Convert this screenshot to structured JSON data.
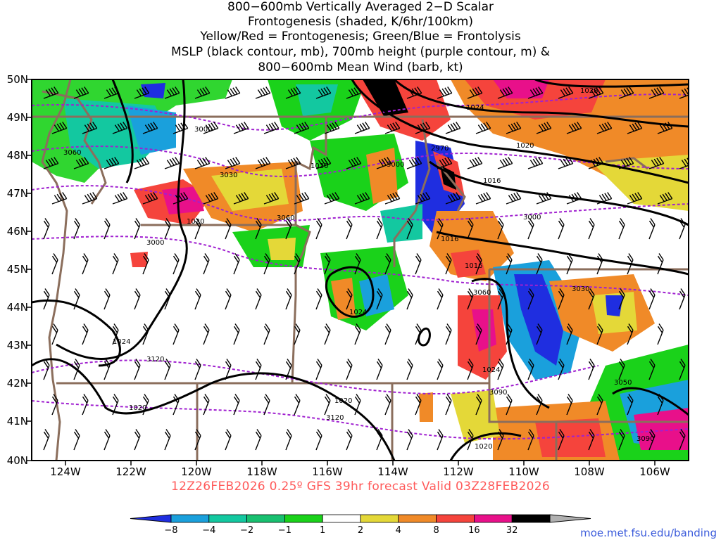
{
  "title_lines": [
    "800−600mb Vertically Averaged 2−D Scalar",
    "Frontogenesis (shaded, K/6hr/100km)",
    "Yellow/Red = Frontogenesis;  Green/Blue = Frontolysis",
    "MSLP (black contour, mb), 700mb height (purple contour, m) &",
    "800−600mb Mean Wind (barb, kt)"
  ],
  "lat_labels": [
    "50N",
    "49N",
    "48N",
    "47N",
    "46N",
    "45N",
    "44N",
    "43N",
    "42N",
    "41N",
    "40N"
  ],
  "lon_labels": [
    "124W",
    "122W",
    "120W",
    "118W",
    "116W",
    "114W",
    "112W",
    "110W",
    "108W",
    "106W"
  ],
  "footer": "12Z26FEB2026 0.25º GFS 39hr forecast Valid 03Z28FEB2026",
  "credit": "moe.met.fsu.edu/banding",
  "colorbar": {
    "labels": [
      "−8",
      "−4",
      "−2",
      "−1",
      "1",
      "2",
      "4",
      "8",
      "16",
      "32"
    ],
    "colors": [
      "#1f2ee0",
      "#1aa0dc",
      "#13c8a0",
      "#18c070",
      "#1ad21a",
      "#ffffff",
      "#e4d838",
      "#f08a28",
      "#f5443c",
      "#e8108a",
      "#000000",
      "#b0b0b0"
    ]
  },
  "contours": {
    "mslp": [
      "1028",
      "1024",
      "1020",
      "1016",
      "1016",
      "1020",
      "1020",
      "1024",
      "1024",
      "1024",
      "1020",
      "1020",
      "1020",
      "1016"
    ],
    "height": [
      "3000",
      "3060",
      "3030",
      "3060",
      "3000",
      "2970",
      "3000",
      "3000",
      "3030",
      "3060",
      "3090",
      "3090",
      "3120",
      "3120",
      "3050"
    ]
  },
  "colors": {
    "mslp": "#000000",
    "height": "#a020d0",
    "borders": "#8b6e5c",
    "footer": "#ff5a5a",
    "credit": "#3b5bdb"
  }
}
